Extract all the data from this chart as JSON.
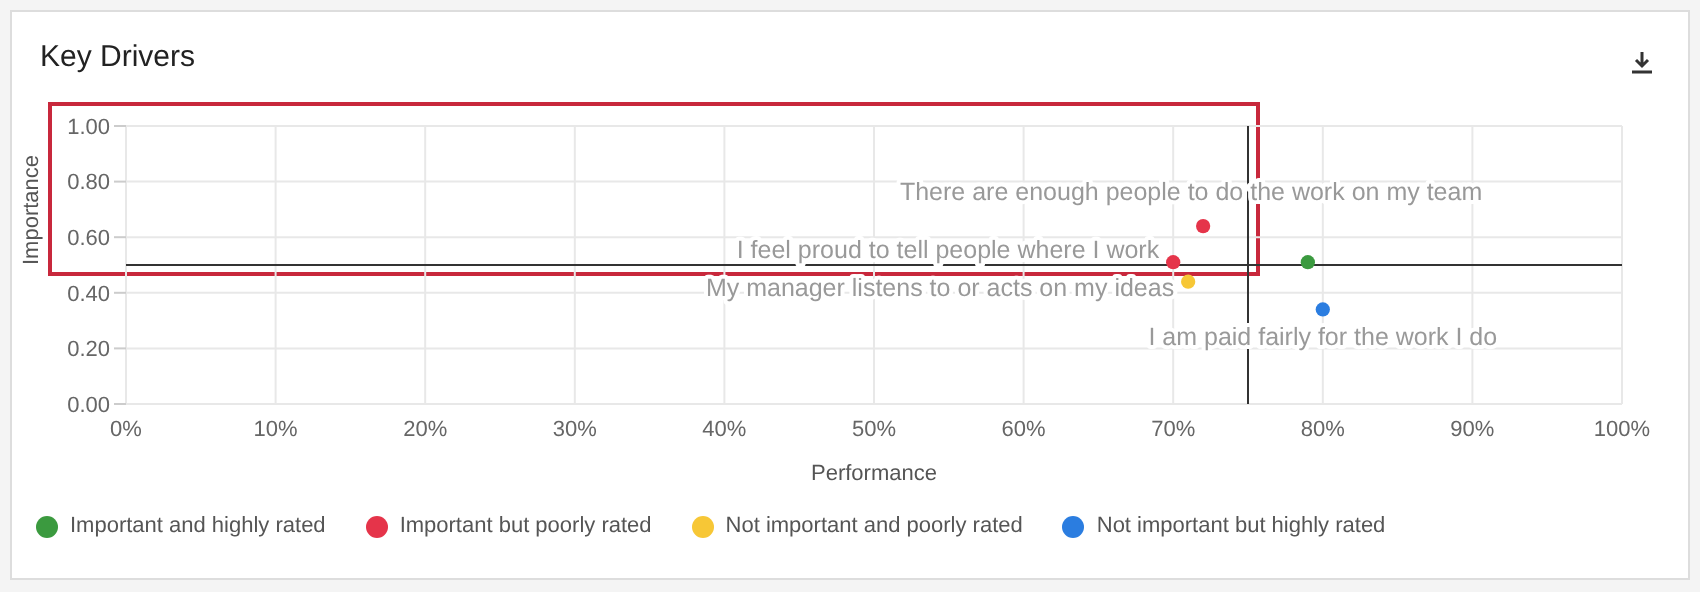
{
  "chart_data": {
    "type": "scatter",
    "title": "Key Drivers",
    "xlabel": "Performance",
    "ylabel": "Importance",
    "series": [
      {
        "name": "Important and highly rated",
        "color": "#3b9a3f",
        "x": [
          79
        ],
        "values": [
          0.51
        ]
      },
      {
        "name": "Important but poorly rated",
        "color": "#e5344a",
        "x": [
          72,
          70
        ],
        "values": [
          0.64,
          0.51
        ]
      },
      {
        "name": "Not important and poorly rated",
        "color": "#f7c736",
        "x": [
          71
        ],
        "values": [
          0.44
        ]
      },
      {
        "name": "Not important but highly rated",
        "color": "#2b7de0",
        "x": [
          80
        ],
        "values": [
          0.34
        ]
      }
    ],
    "annotations": [
      {
        "text": "There are enough people to do the work on my team",
        "x": 72,
        "y": 0.64
      },
      {
        "text": "I feel proud to tell people where I work",
        "x": 70,
        "y": 0.51
      },
      {
        "text": "My manager listens to or acts on my ideas",
        "x": 71,
        "y": 0.44
      },
      {
        "text": "I am paid fairly for the work I do",
        "x": 80,
        "y": 0.34
      }
    ],
    "xlim": [
      0,
      100
    ],
    "xticks": [
      {
        "value": 0,
        "label": "0%"
      },
      {
        "value": 10,
        "label": "10%"
      },
      {
        "value": 20,
        "label": "20%"
      },
      {
        "value": 30,
        "label": "30%"
      },
      {
        "value": 40,
        "label": "40%"
      },
      {
        "value": 50,
        "label": "50%"
      },
      {
        "value": 60,
        "label": "60%"
      },
      {
        "value": 70,
        "label": "70%"
      },
      {
        "value": 80,
        "label": "80%"
      },
      {
        "value": 90,
        "label": "90%"
      },
      {
        "value": 100,
        "label": "100%"
      }
    ],
    "ylim": [
      0,
      1
    ],
    "yticks": [
      {
        "value": 0,
        "label": "0.00"
      },
      {
        "value": 0.2,
        "label": "0.20"
      },
      {
        "value": 0.4,
        "label": "0.40"
      },
      {
        "value": 0.6,
        "label": "0.60"
      },
      {
        "value": 0.8,
        "label": "0.80"
      },
      {
        "value": 1,
        "label": "1.00"
      }
    ],
    "ref_lines": [
      {
        "axis": "x",
        "value": 75,
        "color": "#333333"
      },
      {
        "axis": "y",
        "value": 0.5,
        "color": "#333333"
      }
    ],
    "grid": true,
    "legend": "bottom left",
    "marker": "circle"
  }
}
